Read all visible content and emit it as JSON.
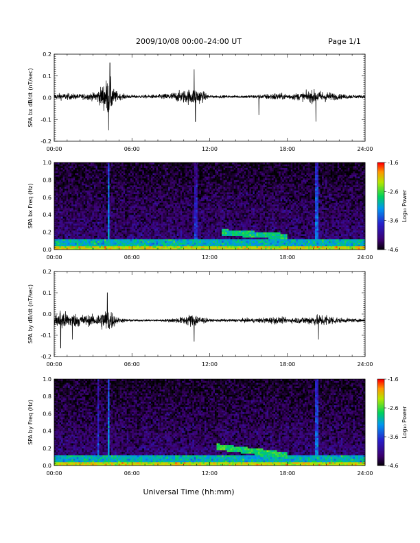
{
  "header": {
    "title": "2009/10/08  00:00–24:00 UT",
    "page": "Page 1/1"
  },
  "xlabel": "Universal Time (hh:mm)",
  "x_ticks": [
    "00:00",
    "06:00",
    "12:00",
    "18:00",
    "24:00"
  ],
  "colorbar": {
    "label": "Log₁₀ Power",
    "ticks": [
      "-1.6",
      "-2.6",
      "-3.6",
      "-4.6"
    ],
    "range": [
      -4.6,
      -1.6
    ]
  },
  "chart_data": [
    {
      "type": "line",
      "ylabel": "SPA bx dB/dt (nT/sec)",
      "y_ticks": [
        "0.2",
        "0.1",
        "0.0",
        "-0.1",
        "-0.2"
      ],
      "ylim": [
        -0.2,
        0.2
      ],
      "xlim_hours": [
        0,
        24
      ],
      "baseline": 0.005,
      "noise_envelope": {
        "hours": [
          0,
          1,
          2,
          3,
          3.5,
          4,
          4.3,
          4.6,
          5,
          6,
          8,
          9,
          10,
          11,
          11.5,
          12,
          14,
          16,
          17,
          18,
          19,
          20,
          21,
          22,
          23,
          24
        ],
        "amplitude": [
          0.025,
          0.025,
          0.02,
          0.03,
          0.06,
          0.13,
          0.15,
          0.06,
          0.025,
          0.012,
          0.015,
          0.03,
          0.05,
          0.07,
          0.04,
          0.01,
          0.01,
          0.015,
          0.03,
          0.02,
          0.03,
          0.05,
          0.04,
          0.02,
          0.015,
          0.01
        ]
      },
      "spikes": [
        {
          "hour": 4.3,
          "value": 0.16
        },
        {
          "hour": 4.2,
          "value": -0.15
        },
        {
          "hour": 10.8,
          "value": 0.13
        },
        {
          "hour": 10.9,
          "value": -0.11
        },
        {
          "hour": 20.2,
          "value": -0.11
        },
        {
          "hour": 15.8,
          "value": -0.08
        }
      ]
    },
    {
      "type": "heatmap",
      "ylabel": "SPA bx Freq (Hz)",
      "y_ticks": [
        "1.0",
        "0.8",
        "0.6",
        "0.4",
        "0.2",
        "0.0"
      ],
      "ylim": [
        0,
        1
      ],
      "xlim_hours": [
        0,
        24
      ],
      "value_units": "Log10 Power",
      "features": [
        {
          "kind": "low-frequency band",
          "hours": [
            0,
            24
          ],
          "freq_max": 0.05,
          "power": -2.2
        },
        {
          "kind": "vertical stripe",
          "hour": 4.2,
          "power": -3.0
        },
        {
          "kind": "vertical stripe",
          "hour": 10.9,
          "power": -3.5
        },
        {
          "kind": "vertical stripe",
          "hour": 20.3,
          "power": -3.2
        },
        {
          "kind": "rising tone",
          "hours": [
            13,
            18
          ],
          "freq": [
            0.2,
            0.15
          ],
          "power": -2.8
        }
      ]
    },
    {
      "type": "line",
      "ylabel": "SPA by dB/dt (nT/sec)",
      "y_ticks": [
        "0.2",
        "0.1",
        "0.0",
        "-0.1",
        "-0.2"
      ],
      "ylim": [
        -0.2,
        0.2
      ],
      "xlim_hours": [
        0,
        24
      ],
      "baseline": -0.03,
      "noise_envelope": {
        "hours": [
          0,
          0.5,
          1,
          2,
          3,
          3.5,
          4,
          4.3,
          4.6,
          5,
          6,
          8,
          9,
          10,
          10.5,
          11,
          11.5,
          12,
          14,
          16,
          17,
          18,
          19,
          20,
          21,
          22,
          23,
          24
        ],
        "amplitude": [
          0.04,
          0.09,
          0.06,
          0.05,
          0.04,
          0.06,
          0.09,
          0.1,
          0.05,
          0.02,
          0.008,
          0.008,
          0.015,
          0.03,
          0.05,
          0.05,
          0.025,
          0.01,
          0.012,
          0.02,
          0.03,
          0.02,
          0.025,
          0.04,
          0.05,
          0.02,
          0.015,
          0.01
        ]
      },
      "spikes": [
        {
          "hour": 0.5,
          "value": -0.16
        },
        {
          "hour": 4.1,
          "value": 0.1
        },
        {
          "hour": 10.8,
          "value": -0.13
        },
        {
          "hour": 20.4,
          "value": -0.12
        },
        {
          "hour": 1.4,
          "value": -0.12
        }
      ]
    },
    {
      "type": "heatmap",
      "ylabel": "SPA by Freq (Hz)",
      "y_ticks": [
        "1.0",
        "0.8",
        "0.6",
        "0.4",
        "0.2",
        "0.0"
      ],
      "ylim": [
        0,
        1
      ],
      "xlim_hours": [
        0,
        24
      ],
      "value_units": "Log10 Power",
      "features": [
        {
          "kind": "low-frequency band",
          "hours": [
            0,
            24
          ],
          "freq_max": 0.05,
          "power": -2.2
        },
        {
          "kind": "vertical stripe",
          "hour": 4.2,
          "power": -3.0
        },
        {
          "kind": "vertical stripe",
          "hour": 3.4,
          "power": -3.4
        },
        {
          "kind": "vertical stripe",
          "hour": 20.3,
          "power": -3.2
        },
        {
          "kind": "rising tone",
          "hours": [
            12.5,
            18
          ],
          "freq": [
            0.22,
            0.12
          ],
          "power": -2.7
        }
      ]
    }
  ]
}
